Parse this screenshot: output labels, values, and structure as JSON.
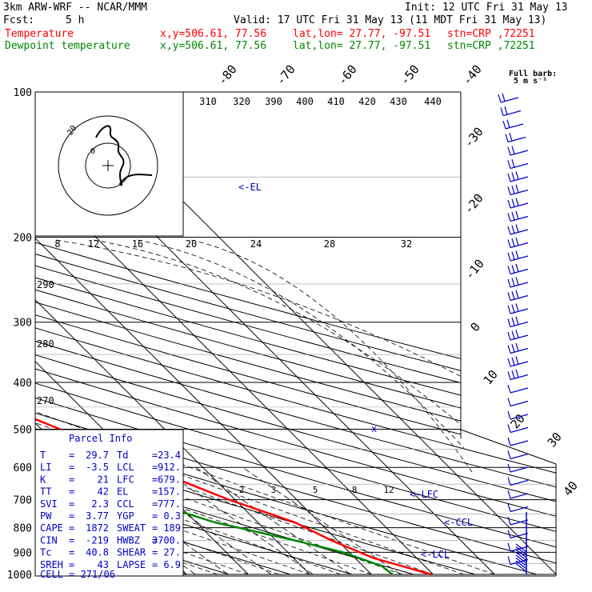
{
  "header": {
    "model": "3km ARW-WRF -- NCAR/MMM",
    "init": "Init: 12 UTC Fri 31 May 13",
    "fcst_label": "Fcst:",
    "fcst_value": "5 h",
    "valid": "Valid: 17 UTC Fri 31 May 13 (11 MDT Fri 31 May 13)",
    "temp_label": "Temperature",
    "dew_label": "Dewpoint temperature",
    "xy": "x,y=506.61, 77.56",
    "latlon": "lat,lon= 27.77, -97.51",
    "stn": "stn=CRP ,72251"
  },
  "colors": {
    "temperature": "#ff0000",
    "dewpoint": "#008800",
    "parcel": "#0000cc",
    "grid": "#000000"
  },
  "barb_legend": {
    "line1": "Full barb:",
    "line2": "5 m s⁻¹"
  },
  "chart_data": {
    "type": "line",
    "pressure_ticks": [
      "100",
      "200",
      "300",
      "400",
      "500",
      "600",
      "700",
      "800",
      "900",
      "1000"
    ],
    "isotherm_labels": [
      "-80",
      "-70",
      "-60",
      "-50",
      "-40",
      "-30",
      "-20",
      "-10",
      "0",
      "10",
      "20",
      "30",
      "40"
    ],
    "theta_labels": [
      "310",
      "320",
      "390",
      "400",
      "410",
      "420",
      "430",
      "440"
    ],
    "mixing_labels": [
      "2",
      "3",
      "5",
      "8",
      "12"
    ],
    "hodo_speed_labels": [
      "8",
      "12",
      "16",
      "20",
      "24",
      "28",
      "32"
    ],
    "hodo_kts": "kts",
    "hodo_ring_label": "20",
    "hodo_origin_label": "0",
    "height_labels": [
      "290",
      "280",
      "270"
    ],
    "el_label": "<-EL",
    "lfc_label": "<-LFC",
    "ccl_label": "<-CCL",
    "lcl_label": "<-LCL",
    "series": [
      {
        "name": "Temperature",
        "points": [
          [
            100,
            -67
          ],
          [
            150,
            -57
          ],
          [
            200,
            -53
          ],
          [
            250,
            -43
          ],
          [
            300,
            -36
          ],
          [
            400,
            -18
          ],
          [
            500,
            -7
          ],
          [
            600,
            1
          ],
          [
            700,
            9
          ],
          [
            780,
            16
          ],
          [
            850,
            19
          ],
          [
            925,
            23
          ],
          [
            1000,
            29.7
          ]
        ]
      },
      {
        "name": "Dewpoint temperature",
        "points": [
          [
            100,
            -83
          ],
          [
            150,
            -82
          ],
          [
            200,
            -78
          ],
          [
            250,
            -75
          ],
          [
            300,
            -69
          ],
          [
            400,
            -40
          ],
          [
            500,
            -38
          ],
          [
            550,
            -33
          ],
          [
            600,
            -14
          ],
          [
            700,
            -5
          ],
          [
            780,
            3
          ],
          [
            850,
            13
          ],
          [
            900,
            19
          ],
          [
            960,
            23
          ],
          [
            1000,
            23.4
          ]
        ]
      }
    ]
  },
  "parcel_info": {
    "title": "Parcel Info",
    "rows": [
      [
        "T",
        "29.7",
        "Td",
        "23.4"
      ],
      [
        "LI",
        "-3.5",
        "LCL",
        "912."
      ],
      [
        "K",
        "21",
        "LFC",
        "679."
      ],
      [
        "TT",
        "42",
        "EL",
        "157."
      ],
      [
        "SVI",
        "2.3",
        "CCL",
        "777."
      ],
      [
        "PW",
        "3.77",
        "YGP",
        "0.3"
      ],
      [
        "CAPE",
        "1872",
        "SWEAT",
        "189"
      ],
      [
        "CIN",
        "-219",
        "HWBZ",
        "3700."
      ],
      [
        "Tc",
        "40.8",
        "SHEAR",
        "27."
      ],
      [
        "SREH",
        "43",
        "LAPSE",
        "6.9"
      ]
    ],
    "cell": "CELL = 271/06"
  }
}
